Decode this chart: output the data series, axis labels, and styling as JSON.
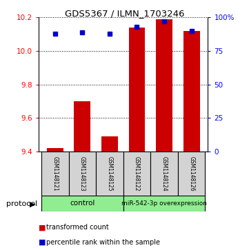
{
  "title": "GDS5367 / ILMN_1703246",
  "samples": [
    "GSM1148121",
    "GSM1148123",
    "GSM1148125",
    "GSM1148122",
    "GSM1148124",
    "GSM1148126"
  ],
  "transformed_counts": [
    9.42,
    9.7,
    9.49,
    10.14,
    10.19,
    10.12
  ],
  "percentile_ranks": [
    88,
    89,
    88,
    93,
    97,
    90
  ],
  "ylim_left": [
    9.4,
    10.2
  ],
  "ylim_right": [
    0,
    100
  ],
  "yticks_left": [
    9.4,
    9.6,
    9.8,
    10.0,
    10.2
  ],
  "yticks_right": [
    0,
    25,
    50,
    75,
    100
  ],
  "bar_color": "#cc0000",
  "dot_color": "#0000cc",
  "control_label": "control",
  "treatment_label": "miR-542-3p overexpression",
  "group_color": "#90ee90",
  "sample_box_color": "#d3d3d3",
  "legend_bar_label": "transformed count",
  "legend_dot_label": "percentile rank within the sample",
  "protocol_label": "protocol",
  "bar_width": 0.6,
  "baseline": 9.4
}
